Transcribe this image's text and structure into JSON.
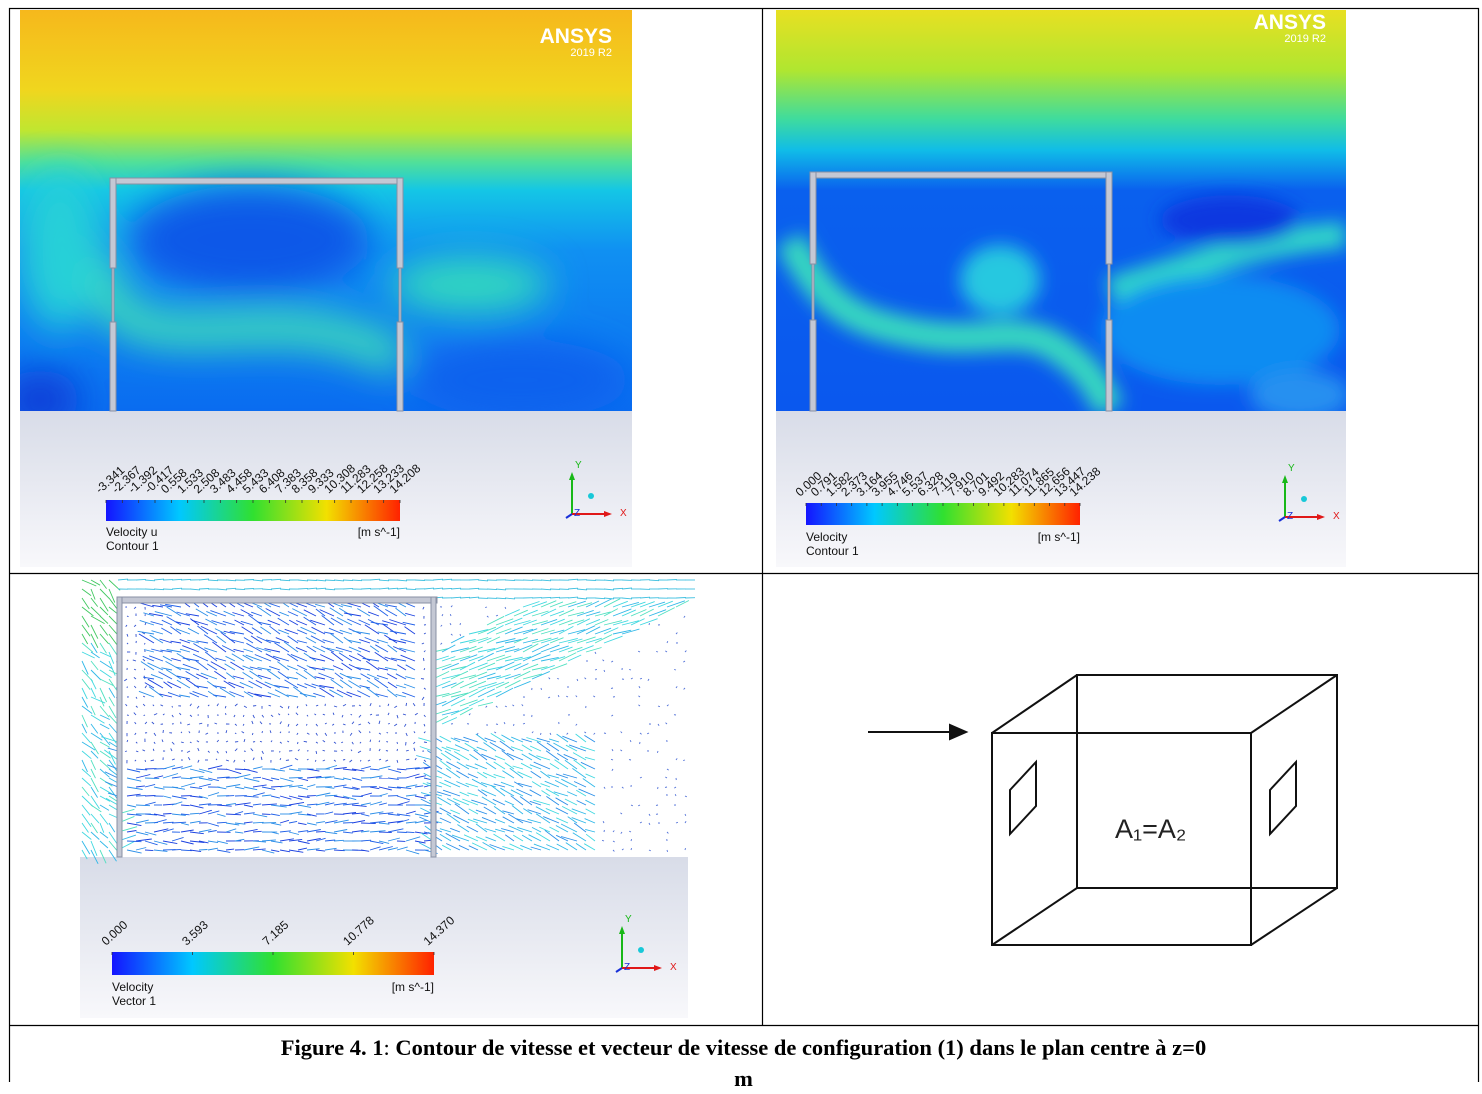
{
  "panels": [
    {
      "watermark": {
        "brand": "ANSYS",
        "version": "2019 R2"
      },
      "legend": {
        "ticks": [
          "-3.341",
          "-2.367",
          "-1.392",
          "-0.417",
          "0.558",
          "1.533",
          "2.508",
          "3.483",
          "4.458",
          "5.433",
          "6.408",
          "7.383",
          "8.358",
          "9.333",
          "10.308",
          "11.283",
          "12.258",
          "13.233",
          "14.208"
        ],
        "variable": "Velocity u",
        "plot": "Contour 1",
        "unit": "[m s^-1]"
      },
      "axes": {
        "x": "X",
        "y": "Y",
        "z": "Z"
      }
    },
    {
      "watermark": {
        "brand": "ANSYS",
        "version": "2019 R2"
      },
      "legend": {
        "ticks": [
          "0.000",
          "0.791",
          "1.582",
          "2.373",
          "3.164",
          "3.955",
          "4.746",
          "5.537",
          "6.328",
          "7.119",
          "7.910",
          "8.701",
          "9.492",
          "10.283",
          "11.074",
          "11.865",
          "12.656",
          "13.447",
          "14.238"
        ],
        "variable": "Velocity",
        "plot": "Contour 1",
        "unit": "[m s^-1]"
      },
      "axes": {
        "x": "X",
        "y": "Y",
        "z": "Z"
      }
    },
    {
      "legend": {
        "ticks": [
          "0.000",
          "3.593",
          "7.185",
          "10.778",
          "14.370"
        ],
        "variable": "Velocity",
        "plot": "Vector 1",
        "unit": "[m s^-1]"
      },
      "axes": {
        "x": "X",
        "y": "Y",
        "z": "Z"
      }
    },
    {
      "label": "A₁=A₂"
    }
  ],
  "caption": {
    "label": "Figure 4. 1",
    "separator": ":",
    "line1": "Contour de vitesse et vecteur de vitesse de configuration (1) dans le plan centre à z=0",
    "line2": "m"
  }
}
